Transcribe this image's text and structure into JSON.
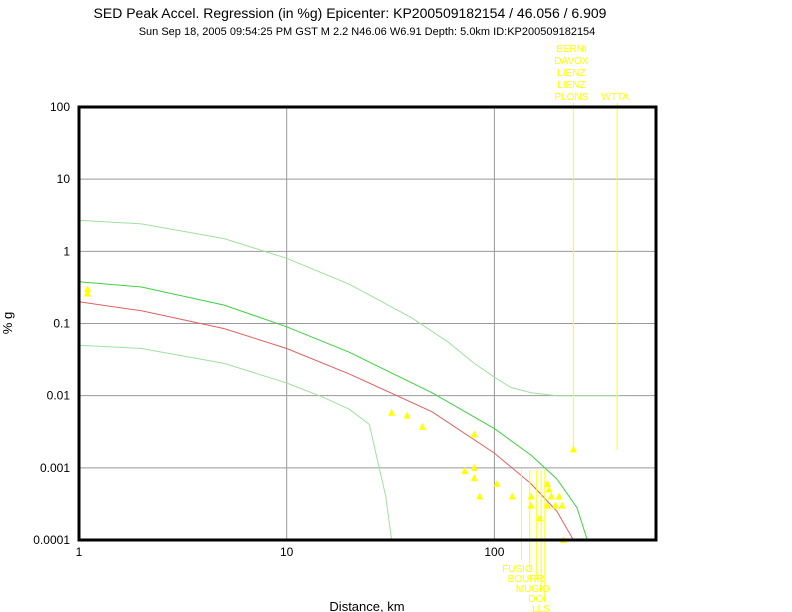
{
  "chart_data": {
    "type": "scatter",
    "title": "SED Peak Accel. Regression (in %g) Epicenter: KP200509182154 / 46.056 / 6.909",
    "subtitle": "Sun Sep 18, 2005 09:54:25 PM GST   M 2.2   N46.06 W6.91   Depth: 5.0km   ID:KP200509182154",
    "xlabel": "Distance, km",
    "ylabel": "% g",
    "xscale": "log",
    "yscale": "log",
    "xlim": [
      1,
      600
    ],
    "ylim": [
      0.0001,
      100
    ],
    "grid": true,
    "x_tick_labels": [
      {
        "value": 1,
        "label": "1"
      },
      {
        "value": 10,
        "label": "10"
      },
      {
        "value": 100,
        "label": "100"
      }
    ],
    "y_tick_labels": [
      {
        "value": 100,
        "label": "100"
      },
      {
        "value": 10,
        "label": "10"
      },
      {
        "value": 1,
        "label": "1"
      },
      {
        "value": 0.1,
        "label": "0.1"
      },
      {
        "value": 0.01,
        "label": "0.01"
      },
      {
        "value": 0.001,
        "label": "0.001"
      },
      {
        "value": 0.0001,
        "label": "0.0001"
      }
    ],
    "colors": {
      "regression": "#e06060",
      "sigma": "#40d040",
      "outer": "#a0e0a0",
      "stations": "#ffff00"
    },
    "curves": [
      {
        "color_key": "regression",
        "x": [
          1,
          2,
          5,
          10,
          20,
          50,
          100,
          150,
          200,
          240
        ],
        "y": [
          0.2,
          0.15,
          0.085,
          0.045,
          0.02,
          0.006,
          0.0016,
          0.0006,
          0.00025,
          0.0001
        ]
      },
      {
        "color_key": "sigma",
        "x": [
          1,
          2,
          5,
          10,
          20,
          50,
          100,
          150,
          200,
          250,
          280
        ],
        "y": [
          0.38,
          0.32,
          0.18,
          0.09,
          0.04,
          0.011,
          0.0035,
          0.0015,
          0.0007,
          0.00028,
          0.0001
        ]
      },
      {
        "color_key": "outer",
        "x": [
          1,
          2,
          5,
          10,
          20,
          40,
          60,
          80,
          100,
          120,
          150,
          200,
          300,
          400
        ],
        "y": [
          2.7,
          2.4,
          1.5,
          0.8,
          0.35,
          0.12,
          0.055,
          0.028,
          0.018,
          0.013,
          0.011,
          0.01,
          0.01,
          0.01
        ]
      },
      {
        "color_key": "outer",
        "x": [
          1,
          2,
          5,
          10,
          15,
          20,
          25,
          27,
          30,
          32
        ],
        "y": [
          0.05,
          0.045,
          0.028,
          0.015,
          0.0095,
          0.0065,
          0.004,
          0.0015,
          0.0004,
          0.0001
        ]
      }
    ],
    "points": [
      {
        "x": 1.1,
        "y": 0.3
      },
      {
        "x": 1.1,
        "y": 0.26
      },
      {
        "x": 32,
        "y": 0.0058
      },
      {
        "x": 38,
        "y": 0.0053
      },
      {
        "x": 45,
        "y": 0.0037
      },
      {
        "x": 80,
        "y": 0.0029
      },
      {
        "x": 72,
        "y": 0.0009
      },
      {
        "x": 80,
        "y": 0.001
      },
      {
        "x": 80,
        "y": 0.00072
      },
      {
        "x": 85,
        "y": 0.0004
      },
      {
        "x": 103,
        "y": 0.0006
      },
      {
        "x": 122,
        "y": 0.0004
      },
      {
        "x": 150,
        "y": 0.0004
      },
      {
        "x": 150,
        "y": 0.0003
      },
      {
        "x": 165,
        "y": 0.0002
      },
      {
        "x": 180,
        "y": 0.0006
      },
      {
        "x": 183,
        "y": 0.0005
      },
      {
        "x": 188,
        "y": 0.0004
      },
      {
        "x": 180,
        "y": 0.0003
      },
      {
        "x": 197,
        "y": 0.0003
      },
      {
        "x": 205,
        "y": 0.0004
      },
      {
        "x": 212,
        "y": 0.0003
      },
      {
        "x": 240,
        "y": 0.0018
      },
      {
        "x": 215,
        "y": 0.0001
      }
    ],
    "stations_top": [
      {
        "x": 240,
        "label": "BERNI"
      },
      {
        "x": 240,
        "label": "DAVOX"
      },
      {
        "x": 240,
        "label": "LIENZ"
      },
      {
        "x": 240,
        "label": "LIENZ"
      },
      {
        "x": 240,
        "label": "PLONS"
      },
      {
        "x": 390,
        "label": "WTTA"
      }
    ],
    "stations_bottom": [
      {
        "x": 135,
        "label": "FUSIO"
      },
      {
        "x": 148,
        "label": "BOURR"
      },
      {
        "x": 160,
        "label": "MUGIO"
      },
      {
        "x": 168,
        "label": "DOI"
      },
      {
        "x": 175,
        "label": "LLS"
      }
    ]
  }
}
